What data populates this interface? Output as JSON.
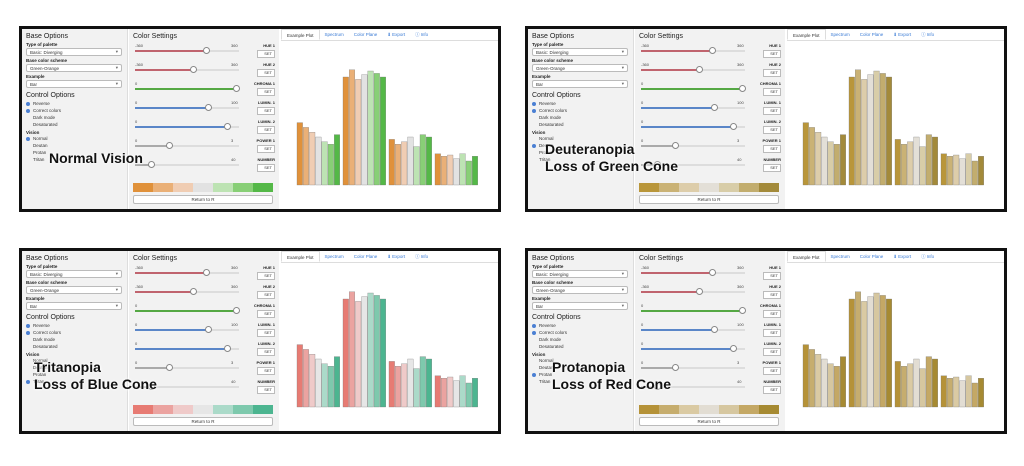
{
  "app": {
    "base_options_title": "Base Options",
    "type_label": "Type of palette",
    "type_value": "Basic: Diverging",
    "scheme_label": "Base color scheme",
    "scheme_value": "Green-Orange",
    "example_label": "Example",
    "example_value": "Bar",
    "control_title": "Control Options",
    "options": [
      {
        "label": "Reverse",
        "checked": true
      },
      {
        "label": "Correct colors",
        "checked": true
      },
      {
        "label": "Dark mode",
        "checked": false
      },
      {
        "label": "Desaturated",
        "checked": false
      }
    ],
    "vision_label": "Vision",
    "vision_options": [
      "Normal",
      "Deutan",
      "Protan",
      "Tritan"
    ],
    "color_settings_title": "Color Settings",
    "sliders": [
      {
        "name": "HUE 1",
        "min": "-360",
        "max": "360",
        "value": "",
        "fraction": 0.68,
        "color": "#c0646e"
      },
      {
        "name": "HUE 2",
        "min": "-360",
        "max": "360",
        "value": "",
        "fraction": 0.56,
        "color": "#c0646e"
      },
      {
        "name": "CHROMA 1",
        "min": "0",
        "max": "",
        "value": "",
        "fraction": 0.97,
        "color": "#55a844"
      },
      {
        "name": "LUMIN. 1",
        "min": "0",
        "max": "100",
        "value": "",
        "fraction": 0.7,
        "color": "#5a86c8"
      },
      {
        "name": "LUMIN. 2",
        "min": "0",
        "max": "",
        "value": "",
        "fraction": 0.88,
        "color": "#5a86c8"
      },
      {
        "name": "POWER 1",
        "min": "0",
        "max": "3",
        "value": "",
        "fraction": 0.33,
        "color": "#aaaaaa"
      },
      {
        "name": "NUMBER",
        "min": "",
        "max": "40",
        "value": "",
        "fraction": 0.15,
        "color": "#aaaaaa"
      }
    ],
    "set_label": "SET",
    "return_label": "Return to R",
    "tabs": [
      {
        "label": "Example Plot",
        "icon": "",
        "active": true
      },
      {
        "label": "Spectrum",
        "icon": "",
        "active": false
      },
      {
        "label": "Color Plane",
        "icon": "",
        "active": false
      },
      {
        "label": "Export",
        "icon": "download-icon",
        "active": false
      },
      {
        "label": "Info",
        "icon": "info-icon",
        "active": false
      }
    ],
    "chart_values": [
      [
        0.52,
        0.48,
        0.44,
        0.4,
        0.36,
        0.34,
        0.42
      ],
      [
        0.9,
        0.96,
        0.88,
        0.92,
        0.95,
        0.93,
        0.9
      ],
      [
        0.38,
        0.34,
        0.36,
        0.4,
        0.32,
        0.42,
        0.4
      ],
      [
        0.26,
        0.24,
        0.25,
        0.22,
        0.26,
        0.2,
        0.24
      ]
    ]
  },
  "panels": [
    {
      "id": "normal",
      "caption_line1": "Normal Vision",
      "caption_line2": "",
      "vision_selected": 0,
      "palette": [
        "#e0913a",
        "#eab077",
        "#f0cdb3",
        "#e2e2e2",
        "#bde3b3",
        "#88cf76",
        "#54b847"
      ]
    },
    {
      "id": "deutan",
      "caption_line1": "Deuteranopia",
      "caption_line2": "Loss of Green Cone",
      "vision_selected": 1,
      "palette": [
        "#b9963a",
        "#cab275",
        "#ddcdaa",
        "#e3dfd7",
        "#d8cda8",
        "#c2ad6e",
        "#a38a3a"
      ]
    },
    {
      "id": "tritan",
      "caption_line1": "Tritanopia",
      "caption_line2": "Loss of Blue Cone",
      "vision_selected": 3,
      "palette": [
        "#e77b73",
        "#eba3a0",
        "#efcac9",
        "#e6e6e6",
        "#abdac9",
        "#7ec9ad",
        "#4cb590"
      ]
    },
    {
      "id": "protan",
      "caption_line1": "Protanopia",
      "caption_line2": "Loss of Red Cone",
      "vision_selected": 2,
      "palette": [
        "#b59238",
        "#c6ad6e",
        "#dacaa3",
        "#e2ddd3",
        "#d6c7a0",
        "#c4a865",
        "#a68a32"
      ]
    }
  ]
}
